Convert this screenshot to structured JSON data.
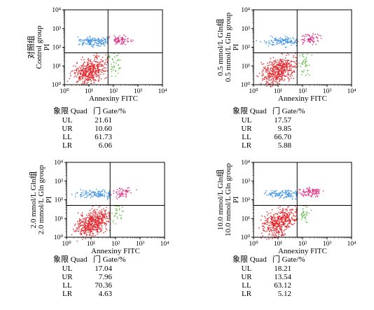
{
  "table_header": {
    "zh": "象限",
    "quad": "Quad",
    "gate_zh": "门",
    "gate": "Gate/%"
  },
  "colors": {
    "UL": "#3b8fe0",
    "UR": "#d9277f",
    "LL": "#e0242a",
    "LR": "#5dbb3f"
  },
  "chart_data": [
    {
      "type": "scatter",
      "title": "",
      "ylabel": [
        "对照组",
        "Control group",
        "PI"
      ],
      "xlabel": "Annexiny FITC",
      "x_scale": "log",
      "y_scale": "log",
      "xlim": [
        1,
        10000
      ],
      "ylim": [
        1,
        10000
      ],
      "tick_labels": [
        "10⁰",
        "10¹",
        "10²",
        "10³",
        "10⁴"
      ],
      "quadrant_gate": {
        "x": 60,
        "y": 50
      },
      "quadrants": {
        "UL": "21.61",
        "UR": "10.60",
        "LL": "61.73",
        "LR": "6.06"
      }
    },
    {
      "type": "scatter",
      "title": "",
      "ylabel": [
        "0.5 mmol/L Gln组",
        "0.5 mmol/L Gln group",
        "PI"
      ],
      "xlabel": "Annexiny FITC",
      "x_scale": "log",
      "y_scale": "log",
      "xlim": [
        1,
        10000
      ],
      "ylim": [
        1,
        10000
      ],
      "tick_labels": [
        "10⁰",
        "10¹",
        "10²",
        "10³",
        "10⁴"
      ],
      "quadrant_gate": {
        "x": 60,
        "y": 50
      },
      "quadrants": {
        "UL": "17.57",
        "UR": "9.85",
        "LL": "66.70",
        "LR": "5.88"
      }
    },
    {
      "type": "scatter",
      "title": "",
      "ylabel": [
        "2.0 mmol/L Gln组",
        "2.0 mmol/L Gln group",
        "PI"
      ],
      "xlabel": "Annexiny FITC",
      "x_scale": "log",
      "y_scale": "log",
      "xlim": [
        1,
        10000
      ],
      "ylim": [
        1,
        10000
      ],
      "tick_labels": [
        "10⁰",
        "10¹",
        "10²",
        "10³",
        "10⁴"
      ],
      "quadrant_gate": {
        "x": 60,
        "y": 50
      },
      "quadrants": {
        "UL": "17.04",
        "UR": "7.96",
        "LL": "70.36",
        "LR": "4.63"
      }
    },
    {
      "type": "scatter",
      "title": "",
      "ylabel": [
        "10.0 mmol/L Gln组",
        "10.0 mmol/L Gln group",
        "PI"
      ],
      "xlabel": "Annexiny FITC",
      "x_scale": "log",
      "y_scale": "log",
      "xlim": [
        1,
        10000
      ],
      "ylim": [
        1,
        10000
      ],
      "tick_labels": [
        "10⁰",
        "10¹",
        "10²",
        "10³",
        "10⁴"
      ],
      "quadrant_gate": {
        "x": 60,
        "y": 50
      },
      "quadrants": {
        "UL": "18.21",
        "UR": "13.54",
        "LL": "63.12",
        "LR": "5.12"
      }
    }
  ]
}
